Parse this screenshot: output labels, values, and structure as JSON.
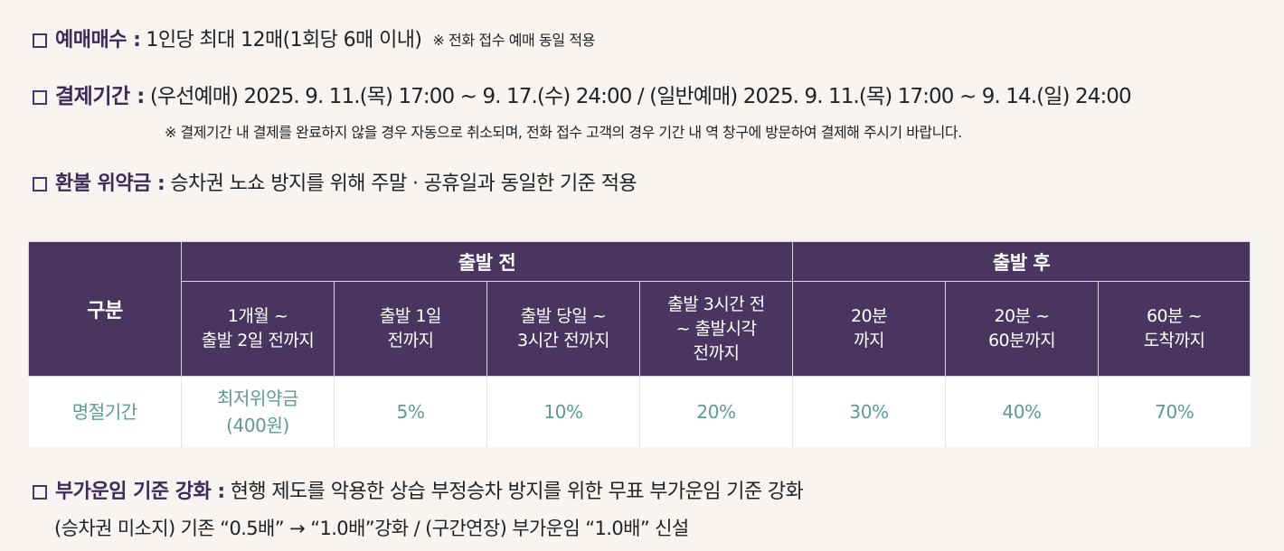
{
  "booking_limit": {
    "label": "예매매수 :",
    "text": "1인당 최대 12매(1회당 6매 이내)",
    "note": "※ 전화 접수 예매 동일 적용"
  },
  "payment_period": {
    "label": "결제기간 :",
    "text": "(우선예매) 2025. 9. 11.(목) 17:00 ~ 9. 17.(수) 24:00 / (일반예매) 2025. 9. 11.(목) 17:00 ~ 9. 14.(일) 24:00",
    "note": "※ 결제기간 내 결제를 완료하지 않을 경우 자동으로 취소되며, 전화 접수 고객의 경우 기간 내 역 창구에 방문하여 결제해 주시기 바랍니다."
  },
  "refund_penalty": {
    "label": "환불 위약금 :",
    "text": "승차권 노쇼 방지를 위해 주말 · 공휴일과 동일한 기준 적용"
  },
  "table": {
    "row_header": "구분",
    "group_before": "출발 전",
    "group_after": "출발 후",
    "columns": [
      [
        "1개월 ~",
        "출발 2일 전까지"
      ],
      [
        "출발 1일",
        "전까지"
      ],
      [
        "출발 당일 ~",
        "3시간 전까지"
      ],
      [
        "출발 3시간 전",
        "~ 출발시각",
        "전까지"
      ],
      [
        "20분",
        "까지"
      ],
      [
        "20분 ~",
        "60분까지"
      ],
      [
        "60분 ~",
        "도착까지"
      ]
    ],
    "row_label": "명절기간",
    "values": [
      [
        "최저위약금",
        "(400원)"
      ],
      [
        "5%"
      ],
      [
        "10%"
      ],
      [
        "20%"
      ],
      [
        "30%"
      ],
      [
        "40%"
      ],
      [
        "70%"
      ]
    ]
  },
  "surcharge": {
    "label": "부가운임 기준 강화 :",
    "text": "현행 제도를 악용한 상습 부정승차 방지를 위한 무표 부가운임 기준 강화",
    "detail": "(승차권 미소지) 기존 “0.5배” → “1.0배”강화  /  (구간연장) 부가운임 “1.0배” 신설"
  },
  "colors": {
    "header_bg": "#4a3560",
    "label_text": "#3f2a58",
    "value_text": "#5f9a95",
    "page_bg": "#f8f4f1"
  },
  "icons": [
    "square-bullet-icon"
  ]
}
